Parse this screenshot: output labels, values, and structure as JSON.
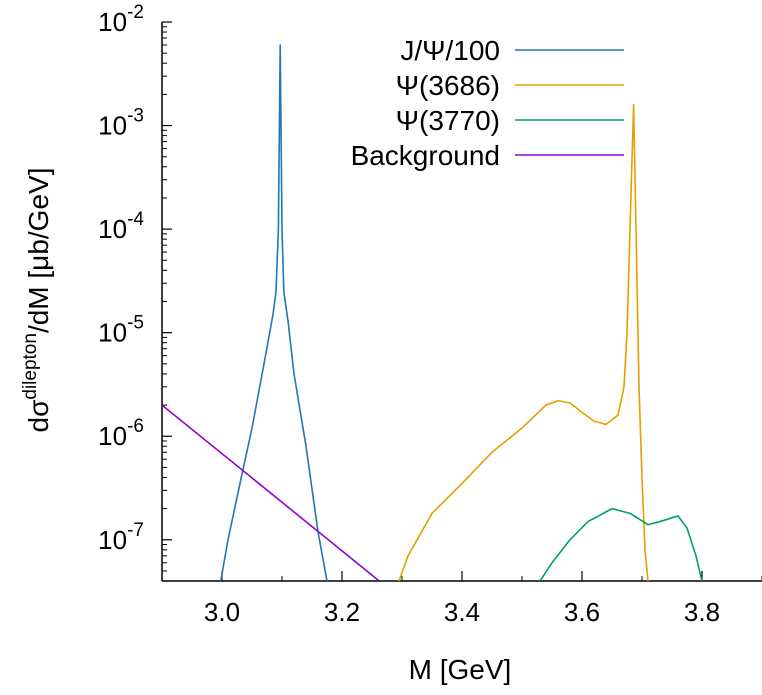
{
  "chart_data": {
    "type": "line",
    "title": "",
    "xlabel": "M [GeV]",
    "ylabel": {
      "prefix": "dσ",
      "superscript": "dilepton",
      "suffix": "/dM [μb/GeV]"
    },
    "xlim": [
      2.9,
      3.9
    ],
    "ylim": [
      4e-08,
      0.01
    ],
    "yscale": "log",
    "grid": false,
    "legend_position": "top-right",
    "x_ticks": [
      {
        "value": 3.0,
        "label": "3.0"
      },
      {
        "value": 3.2,
        "label": "3.2"
      },
      {
        "value": 3.4,
        "label": "3.4"
      },
      {
        "value": 3.6,
        "label": "3.6"
      },
      {
        "value": 3.8,
        "label": "3.8"
      }
    ],
    "y_ticks": [
      {
        "value": 1e-07,
        "base": "10",
        "exp": "-7"
      },
      {
        "value": 1e-06,
        "base": "10",
        "exp": "-6"
      },
      {
        "value": 1e-05,
        "base": "10",
        "exp": "-5"
      },
      {
        "value": 0.0001,
        "base": "10",
        "exp": "-4"
      },
      {
        "value": 0.001,
        "base": "10",
        "exp": "-3"
      },
      {
        "value": 0.01,
        "base": "10",
        "exp": "-2"
      }
    ],
    "series": [
      {
        "name": "J/Ψ/100",
        "color": "#1f77b4",
        "points": [
          [
            2.998,
            4e-08
          ],
          [
            3.01,
            1e-07
          ],
          [
            3.03,
            3.5e-07
          ],
          [
            3.05,
            1.2e-06
          ],
          [
            3.07,
            5e-06
          ],
          [
            3.085,
            1.5e-05
          ],
          [
            3.09,
            2.5e-05
          ],
          [
            3.094,
            0.0001
          ],
          [
            3.097,
            0.006
          ],
          [
            3.1,
            0.0001
          ],
          [
            3.103,
            2.5e-05
          ],
          [
            3.11,
            1.3e-05
          ],
          [
            3.12,
            4e-06
          ],
          [
            3.14,
            8e-07
          ],
          [
            3.16,
            1.2e-07
          ],
          [
            3.175,
            4e-08
          ]
        ]
      },
      {
        "name": "Ψ(3686)",
        "color": "#e69f00",
        "points": [
          [
            3.295,
            4e-08
          ],
          [
            3.31,
            7e-08
          ],
          [
            3.35,
            1.8e-07
          ],
          [
            3.4,
            3.5e-07
          ],
          [
            3.45,
            7e-07
          ],
          [
            3.5,
            1.2e-06
          ],
          [
            3.54,
            2e-06
          ],
          [
            3.56,
            2.2e-06
          ],
          [
            3.58,
            2.1e-06
          ],
          [
            3.6,
            1.7e-06
          ],
          [
            3.62,
            1.4e-06
          ],
          [
            3.64,
            1.3e-06
          ],
          [
            3.66,
            1.6e-06
          ],
          [
            3.67,
            3e-06
          ],
          [
            3.675,
            1e-05
          ],
          [
            3.68,
            0.0001
          ],
          [
            3.686,
            0.0016
          ],
          [
            3.69,
            0.0001
          ],
          [
            3.695,
            3e-06
          ],
          [
            3.7,
            4e-07
          ],
          [
            3.705,
            8e-08
          ],
          [
            3.71,
            4e-08
          ]
        ]
      },
      {
        "name": "Ψ(3770)",
        "color": "#009e73",
        "points": [
          [
            3.53,
            4e-08
          ],
          [
            3.55,
            6e-08
          ],
          [
            3.58,
            1e-07
          ],
          [
            3.61,
            1.5e-07
          ],
          [
            3.65,
            2e-07
          ],
          [
            3.68,
            1.8e-07
          ],
          [
            3.71,
            1.4e-07
          ],
          [
            3.73,
            1.5e-07
          ],
          [
            3.76,
            1.7e-07
          ],
          [
            3.775,
            1.3e-07
          ],
          [
            3.79,
            7e-08
          ],
          [
            3.8,
            4e-08
          ]
        ]
      },
      {
        "name": "Background",
        "color": "#9400d3",
        "points": [
          [
            2.9,
            2e-06
          ],
          [
            3.262,
            4e-08
          ]
        ]
      }
    ]
  }
}
